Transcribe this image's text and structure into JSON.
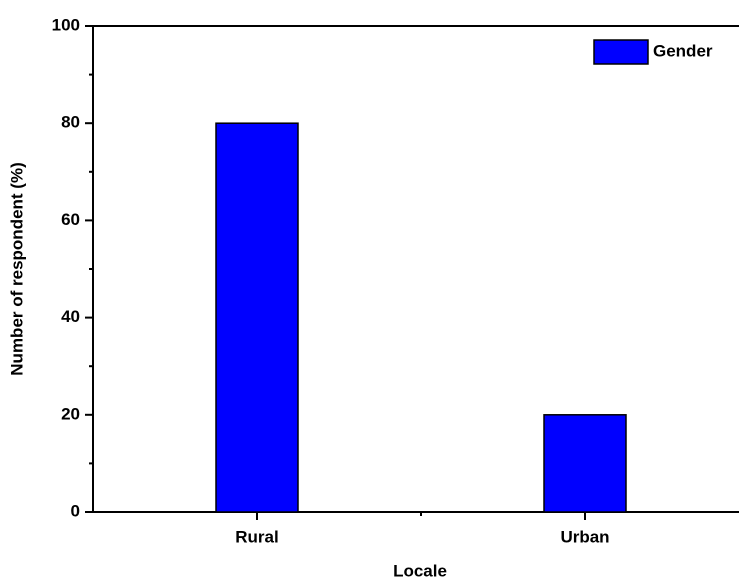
{
  "chart_data": {
    "type": "bar",
    "categories": [
      "Rural",
      "Urban"
    ],
    "series": [
      {
        "name": "Gender",
        "color": "#0000ff",
        "values": [
          80,
          20
        ]
      }
    ],
    "xlabel": "Locale",
    "ylabel": "Number of respondent (%)",
    "ylim": [
      0,
      100
    ],
    "yticks": [
      0,
      20,
      40,
      60,
      80,
      100
    ],
    "legend": "upper right"
  }
}
